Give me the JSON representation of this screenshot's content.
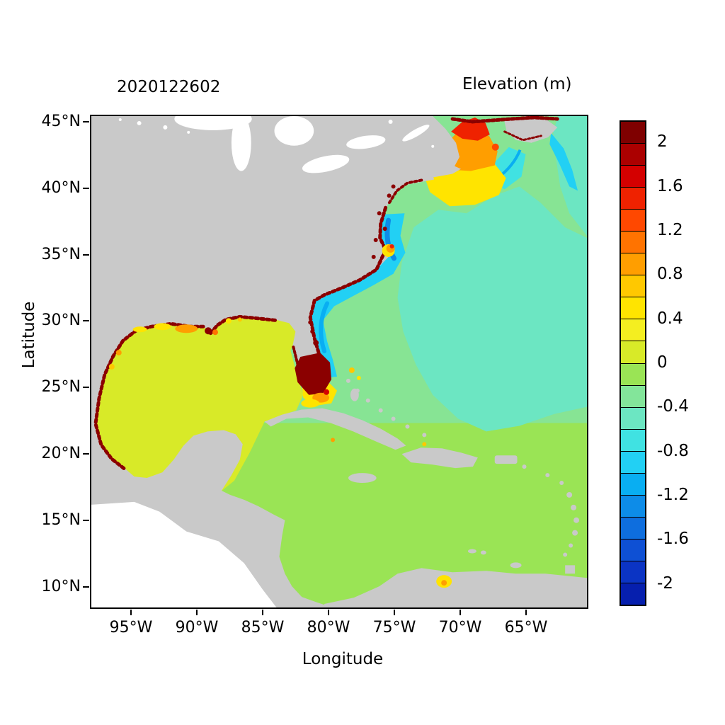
{
  "title": "2020122602",
  "colorbar": {
    "title": "Elevation (m)",
    "tick_labels": [
      "2",
      "1.6",
      "1.2",
      "0.8",
      "0.4",
      "0",
      "-0.4",
      "-0.8",
      "-1.2",
      "-1.6",
      "-2"
    ],
    "tick_values": [
      2,
      1.6,
      1.2,
      0.8,
      0.4,
      0,
      -0.4,
      -0.8,
      -1.2,
      -1.6,
      -2
    ],
    "range_min": -2.2,
    "range_max": 2.2,
    "colors_top_to_bottom": [
      "#7f0000",
      "#ab0000",
      "#d40000",
      "#ef2200",
      "#ff4800",
      "#ff7300",
      "#ff9e00",
      "#ffc800",
      "#ffe400",
      "#f4ee20",
      "#d8ea28",
      "#9ae455",
      "#83e59a",
      "#6ce6c2",
      "#40e2e2",
      "#22d0f4",
      "#09aef2",
      "#0d8ce8",
      "#0e6ede",
      "#0e50d4",
      "#0b34c4",
      "#061fae"
    ]
  },
  "axes": {
    "x": {
      "label": "Longitude",
      "ticks": [
        "95°W",
        "90°W",
        "85°W",
        "80°W",
        "75°W",
        "70°W",
        "65°W"
      ]
    },
    "y": {
      "label": "Latitude",
      "ticks": [
        "45°N",
        "40°N",
        "35°N",
        "30°N",
        "25°N",
        "20°N",
        "15°N",
        "10°N"
      ]
    }
  },
  "chart_data": {
    "type": "heatmap",
    "title": "2020122602",
    "colorbar_title": "Elevation (m)",
    "xlabel": "Longitude",
    "ylabel": "Latitude",
    "x_ticks": [
      "95°W",
      "90°W",
      "85°W",
      "80°W",
      "75°W",
      "70°W",
      "65°W"
    ],
    "y_ticks": [
      "45°N",
      "40°N",
      "35°N",
      "30°N",
      "25°N",
      "20°N",
      "15°N",
      "10°N"
    ],
    "x_range_deg_west": [
      98,
      60.5
    ],
    "y_range_deg_north": [
      8.5,
      45.5
    ],
    "value_range_m": [
      -2.2,
      2.2
    ],
    "legend_step_m": 0.2,
    "land_color": "#c9c9c9",
    "outside_domain_color": "#ffffff",
    "regions": [
      {
        "name": "Gulf of Mexico",
        "approx_elevation_m": 0.3
      },
      {
        "name": "Caribbean Sea",
        "approx_elevation_m": 0.1
      },
      {
        "name": "Open Atlantic gyre area",
        "approx_elevation_m": -0.3
      },
      {
        "name": "Atlantic shelf ring around gyre",
        "approx_elevation_m": -0.1
      },
      {
        "name": "Nearshore band, Carolinas to Florida",
        "approx_elevation_m": -0.7
      },
      {
        "name": "Gulf of Maine / New England shelf",
        "approx_elevation_m": 1.0
      },
      {
        "name": "Gulf of Maine core",
        "approx_elevation_m": 1.6
      },
      {
        "name": "Bay of Fundy and Maine coast fringe",
        "approx_elevation_m": 2.2
      },
      {
        "name": "South Florida / Florida Bay blob",
        "approx_elevation_m": 2.2
      },
      {
        "name": "Straits of Florida patch",
        "approx_elevation_m": 0.5
      },
      {
        "name": "Louisiana / Texas coastal fringe",
        "approx_elevation_m": 1.8
      },
      {
        "name": "Mississippi delta patches",
        "approx_elevation_m": 0.9
      },
      {
        "name": "Cape Hatteras spot",
        "approx_elevation_m": 0.8
      },
      {
        "name": "Lake Maracaibo / Venezuela spot",
        "approx_elevation_m": 0.5
      }
    ]
  }
}
